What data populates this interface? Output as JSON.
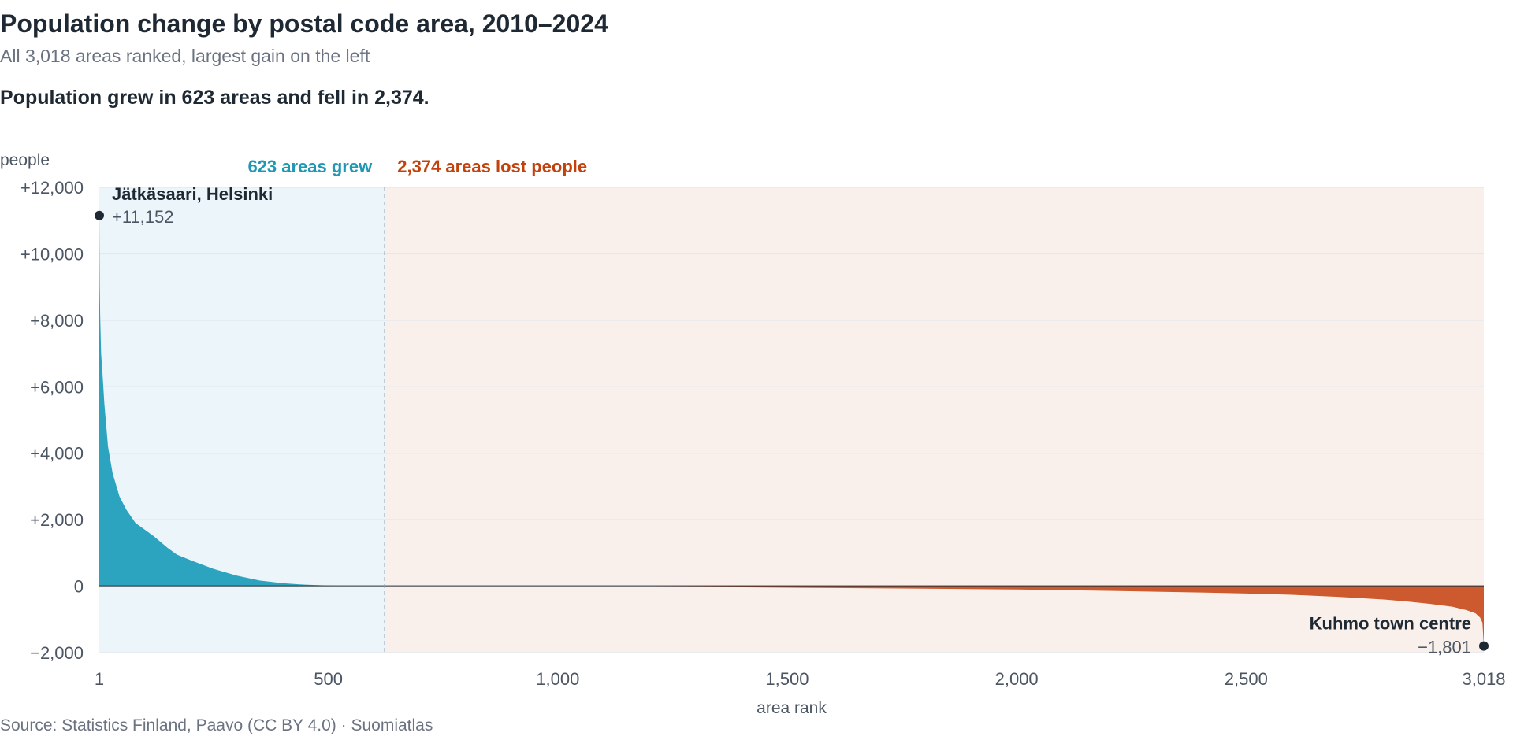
{
  "title": "Population change by postal code area, 2010–2024",
  "subtitle": "All 3,018 areas ranked, largest gain on the left",
  "headline": "Population grew in 623 areas and fell in 2,374.",
  "source": "Source: Statistics Finland, Paavo (CC BY 4.0) · Suomiatlas",
  "colors": {
    "growth": "#2ca3bf",
    "decline": "#cc5a2e",
    "growth_bg": "#ecf6fa",
    "decline_bg": "#f9f0eb",
    "growth_label": "#1f98b4",
    "decline_label": "#c2410c",
    "marker": "#1f2933",
    "zero_line": "#1f2933",
    "grid": "#e3e8ee",
    "divider": "#94a3b8"
  },
  "chart_data": {
    "type": "area",
    "ylabel": "people",
    "xlabel": "area rank",
    "xlim": [
      1,
      3018
    ],
    "ylim": [
      -2000,
      12000
    ],
    "grid": true,
    "y_ticks": [
      {
        "value": 12000,
        "label": "+12,000"
      },
      {
        "value": 10000,
        "label": "+10,000"
      },
      {
        "value": 8000,
        "label": "+8,000"
      },
      {
        "value": 6000,
        "label": "+6,000"
      },
      {
        "value": 4000,
        "label": "+4,000"
      },
      {
        "value": 2000,
        "label": "+2,000"
      },
      {
        "value": 0,
        "label": "0"
      },
      {
        "value": -2000,
        "label": "−2,000"
      }
    ],
    "x_ticks": [
      {
        "value": 1,
        "label": "1"
      },
      {
        "value": 500,
        "label": "500"
      },
      {
        "value": 1000,
        "label": "1,000"
      },
      {
        "value": 1500,
        "label": "1,500"
      },
      {
        "value": 2000,
        "label": "2,000"
      },
      {
        "value": 2500,
        "label": "2,500"
      },
      {
        "value": 3018,
        "label": "3,018"
      }
    ],
    "regions": [
      {
        "label": "623 areas grew",
        "x_start": 1,
        "x_end": 623
      },
      {
        "label": "2,374 areas lost people",
        "x_start": 623,
        "x_end": 3018
      }
    ],
    "divider_x": 623,
    "series": [
      {
        "x": [
          1,
          2,
          3,
          5,
          8,
          12,
          20,
          30,
          45,
          60,
          80,
          100,
          120,
          150,
          170,
          200,
          250,
          300,
          350,
          400,
          450,
          500,
          550,
          600,
          623,
          700,
          800,
          1000,
          1200,
          1400,
          1600,
          1800,
          2000,
          2200,
          2400,
          2500,
          2600,
          2700,
          2800,
          2850,
          2900,
          2950,
          2980,
          3000,
          3010,
          3015,
          3018
        ],
        "y": [
          11152,
          9000,
          8100,
          7000,
          6400,
          5500,
          4200,
          3400,
          2700,
          2300,
          1900,
          1700,
          1500,
          1150,
          950,
          780,
          520,
          320,
          170,
          90,
          45,
          20,
          8,
          2,
          0,
          -2,
          -5,
          -12,
          -22,
          -35,
          -55,
          -75,
          -100,
          -140,
          -190,
          -220,
          -260,
          -320,
          -400,
          -460,
          -530,
          -620,
          -720,
          -820,
          -950,
          -1100,
          -1801
        ]
      }
    ],
    "annotations": [
      {
        "name": "Jätkäsaari, Helsinki",
        "value_label": "+11,152",
        "x": 1,
        "y": 11152
      },
      {
        "name": "Kuhmo town centre",
        "value_label": "−1,801",
        "x": 3018,
        "y": -1801
      }
    ]
  }
}
